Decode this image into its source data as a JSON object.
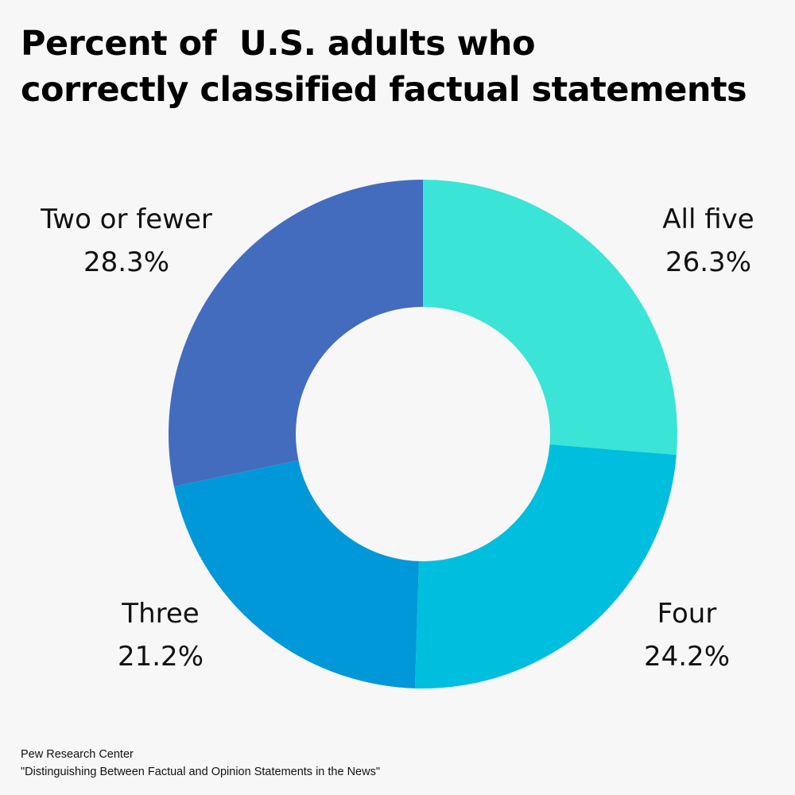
{
  "title_lines": [
    "Percent of  U.S. adults who",
    "correctly classified factual statements"
  ],
  "source": {
    "line1": "Pew Research Center",
    "line2": "\"Distinguishing Between Factual and Opinion Statements in the News\""
  },
  "chart_data": {
    "type": "pie",
    "variant": "donut",
    "title": "Percent of  U.S. adults who correctly classified factual statements",
    "categories": [
      "All five",
      "Four",
      "Three",
      "Two or fewer"
    ],
    "values": [
      26.3,
      24.2,
      21.2,
      28.3
    ],
    "value_labels": [
      "26.3%",
      "24.2%",
      "21.2%",
      "28.3%"
    ],
    "colors": [
      "#3ae4d6",
      "#00bede",
      "#0098d8",
      "#436cbf"
    ],
    "start": "12 o'clock",
    "direction": "clockwise",
    "legend": "none (labels placed beside slices)"
  }
}
